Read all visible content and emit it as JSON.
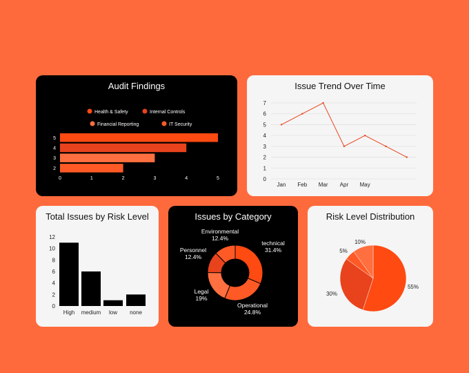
{
  "colors": {
    "background": "#ff6a3d",
    "orange_bright": "#ff4a12",
    "orange_dark": "#e8431c",
    "orange_mid": "#ff5a26",
    "orange_light": "#ff6f3f",
    "line": "#e8431c"
  },
  "chart_data": [
    {
      "type": "bar",
      "orientation": "horizontal",
      "title": "Audit Findings",
      "categories": [
        "5",
        "4",
        "3",
        "2"
      ],
      "series": [
        {
          "name": "Health & Safety",
          "values": [
            5,
            null,
            null,
            null
          ]
        },
        {
          "name": "Internal Controls",
          "values": [
            null,
            4,
            null,
            null
          ]
        },
        {
          "name": "Financial Reporting",
          "values": [
            null,
            null,
            3,
            null
          ]
        },
        {
          "name": "IT Security",
          "values": [
            null,
            null,
            null,
            2
          ]
        }
      ],
      "xlim": [
        0,
        5
      ],
      "xticks": [
        "0",
        "1",
        "2",
        "3",
        "4",
        "5"
      ],
      "legend_position": "top"
    },
    {
      "type": "line",
      "title": "Issue Trend Over Time",
      "x": [
        "Jan",
        "Feb",
        "Mar",
        "Apr",
        "May",
        "",
        ""
      ],
      "values": [
        5,
        6,
        7,
        3,
        4,
        3,
        2
      ],
      "xticks": [
        "Jan",
        "Feb",
        "Mar",
        "Apr",
        "May"
      ],
      "ylim": [
        0,
        7
      ],
      "yticks": [
        "0",
        "1",
        "2",
        "3",
        "4",
        "5",
        "6",
        "7"
      ],
      "grid": true
    },
    {
      "type": "bar",
      "title": "Total Issues by Risk Level",
      "categories": [
        "High",
        "medium",
        "low",
        "none"
      ],
      "values": [
        11,
        6,
        1,
        2
      ],
      "ylim": [
        0,
        12
      ],
      "yticks": [
        "0",
        "2",
        "4",
        "6",
        "8",
        "10",
        "12"
      ]
    },
    {
      "type": "pie",
      "donut": true,
      "title": "Issues by Category",
      "labels": [
        "technical",
        "Operational",
        "Legal",
        "Personnel",
        "Environmental"
      ],
      "percent_labels": [
        "31.4%",
        "24.8%",
        "19%",
        "12.4%",
        "12.4%"
      ],
      "values": [
        31.4,
        24.8,
        19,
        12.4,
        12.4
      ]
    },
    {
      "type": "pie",
      "title": "Risk Level Distribution",
      "labels": [
        "55%",
        "30%",
        "5%",
        "10%"
      ],
      "values": [
        55,
        30,
        5,
        10
      ]
    }
  ]
}
